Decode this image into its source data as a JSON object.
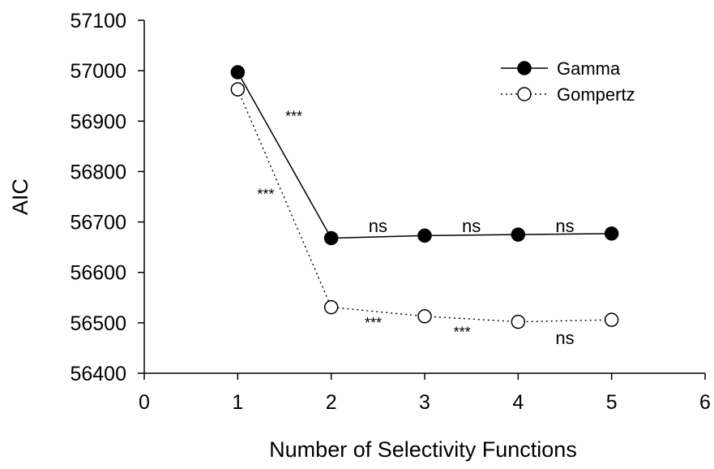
{
  "chart_data": {
    "type": "line",
    "title": "",
    "xlabel": "Number of Selectivity Functions",
    "ylabel": "AIC",
    "xlim": [
      0,
      6
    ],
    "ylim": [
      56400,
      57100
    ],
    "xticks": [
      0,
      1,
      2,
      3,
      4,
      5,
      6
    ],
    "yticks": [
      56400,
      56500,
      56600,
      56700,
      56800,
      56900,
      57000,
      57100
    ],
    "grid": false,
    "legend_position": "top-right",
    "series": [
      {
        "name": "Gamma",
        "line_style": "solid",
        "marker": "filled-circle",
        "color": "#000000",
        "x": [
          1,
          2,
          3,
          4,
          5
        ],
        "y": [
          56997,
          56668,
          56673,
          56675,
          56677
        ]
      },
      {
        "name": "Gompertz",
        "line_style": "dotted",
        "marker": "open-circle",
        "color": "#000000",
        "x": [
          1,
          2,
          3,
          4,
          5
        ],
        "y": [
          56963,
          56531,
          56513,
          56502,
          56506
        ]
      }
    ],
    "annotations": [
      {
        "text": "***",
        "x": 1.6,
        "y": 56900
      },
      {
        "text": "***",
        "x": 1.3,
        "y": 56745
      },
      {
        "text": "ns",
        "x": 2.5,
        "y": 56680
      },
      {
        "text": "ns",
        "x": 3.5,
        "y": 56680
      },
      {
        "text": "ns",
        "x": 4.5,
        "y": 56680
      },
      {
        "text": "***",
        "x": 2.45,
        "y": 56490
      },
      {
        "text": "***",
        "x": 3.4,
        "y": 56472
      },
      {
        "text": "ns",
        "x": 4.5,
        "y": 56458
      }
    ]
  }
}
